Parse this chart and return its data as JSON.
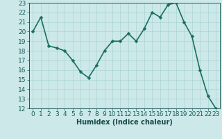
{
  "x": [
    0,
    1,
    2,
    3,
    4,
    5,
    6,
    7,
    8,
    9,
    10,
    11,
    12,
    13,
    14,
    15,
    16,
    17,
    18,
    19,
    20,
    21,
    22,
    23
  ],
  "y": [
    20.0,
    21.5,
    18.5,
    18.3,
    18.0,
    17.0,
    15.8,
    15.2,
    16.5,
    18.0,
    19.0,
    19.0,
    19.8,
    19.0,
    20.3,
    22.0,
    21.5,
    22.8,
    23.0,
    21.0,
    19.5,
    16.0,
    13.3,
    12.0
  ],
  "xlabel": "Humidex (Indice chaleur)",
  "ylim": [
    12,
    23
  ],
  "xlim": [
    -0.5,
    23.5
  ],
  "yticks": [
    12,
    13,
    14,
    15,
    16,
    17,
    18,
    19,
    20,
    21,
    22,
    23
  ],
  "xticks": [
    0,
    1,
    2,
    3,
    4,
    5,
    6,
    7,
    8,
    9,
    10,
    11,
    12,
    13,
    14,
    15,
    16,
    17,
    18,
    19,
    20,
    21,
    22,
    23
  ],
  "line_color": "#1a6e62",
  "marker_color": "#1a6e62",
  "bg_color": "#cce8e8",
  "grid_color": "#aad4d4",
  "tick_label_color": "#1a5a5a",
  "xlabel_color": "#1a4a4a",
  "line_width": 1.2,
  "marker_size": 2.5,
  "font_size": 6.5
}
